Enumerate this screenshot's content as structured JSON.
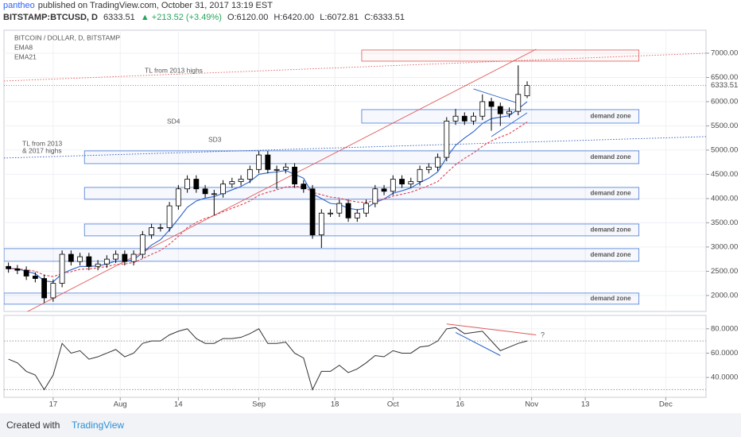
{
  "header": {
    "author": "pantheo",
    "published": "published on TradingView.com, October 31, 2017 13:19 EST",
    "symbol": "BITSTAMP:BTCUSD, D",
    "price": "6333.51",
    "change": "▲ +213.52 (+3.49%)",
    "open": "O:6120.00",
    "high": "H:6420.00",
    "low": "L:6072.81",
    "close": "C:6333.51"
  },
  "footer": {
    "created": "Created with",
    "brand": "TradingView"
  },
  "chart_data": [
    {
      "type": "candlestick",
      "title": "BITCOIN / DOLLAR, D, BITSTAMP",
      "up_color": "#ffffff",
      "down_color": "#000000",
      "wick_color": "#000000",
      "x": [
        "2017-07-07",
        "2017-07-09",
        "2017-07-11",
        "2017-07-13",
        "2017-07-15",
        "2017-07-17",
        "2017-07-19",
        "2017-07-21",
        "2017-07-23",
        "2017-07-25",
        "2017-07-27",
        "2017-07-29",
        "2017-07-31",
        "2017-08-02",
        "2017-08-04",
        "2017-08-06",
        "2017-08-08",
        "2017-08-10",
        "2017-08-12",
        "2017-08-14",
        "2017-08-16",
        "2017-08-18",
        "2017-08-20",
        "2017-08-22",
        "2017-08-24",
        "2017-08-26",
        "2017-08-28",
        "2017-08-30",
        "2017-09-01",
        "2017-09-03",
        "2017-09-05",
        "2017-09-07",
        "2017-09-09",
        "2017-09-11",
        "2017-09-13",
        "2017-09-15",
        "2017-09-17",
        "2017-09-19",
        "2017-09-21",
        "2017-09-23",
        "2017-09-25",
        "2017-09-27",
        "2017-09-29",
        "2017-10-01",
        "2017-10-03",
        "2017-10-05",
        "2017-10-07",
        "2017-10-09",
        "2017-10-11",
        "2017-10-13",
        "2017-10-15",
        "2017-10-17",
        "2017-10-19",
        "2017-10-21",
        "2017-10-23",
        "2017-10-25",
        "2017-10-27",
        "2017-10-29",
        "2017-10-31"
      ],
      "open": [
        2600,
        2550,
        2520,
        2400,
        2350,
        1950,
        2250,
        2850,
        2700,
        2800,
        2600,
        2650,
        2750,
        2850,
        2700,
        2850,
        3250,
        3400,
        3400,
        3850,
        4200,
        4400,
        4200,
        4100,
        4100,
        4300,
        4350,
        4400,
        4600,
        4900,
        4600,
        4600,
        4650,
        4300,
        4200,
        3250,
        3700,
        3700,
        3900,
        3600,
        3700,
        3900,
        4200,
        4150,
        4400,
        4300,
        4350,
        4600,
        4650,
        4850,
        5600,
        5700,
        5600,
        5700,
        6000,
        5900,
        5750,
        5800,
        6120
      ],
      "high": [
        2680,
        2630,
        2600,
        2480,
        2430,
        2330,
        2930,
        2930,
        2880,
        2880,
        2730,
        2830,
        2930,
        2930,
        2930,
        3330,
        3480,
        3480,
        3930,
        4280,
        4480,
        4480,
        4280,
        4180,
        4380,
        4430,
        4480,
        4680,
        4980,
        4980,
        4680,
        4730,
        4730,
        4380,
        4280,
        3780,
        3780,
        3980,
        3980,
        3780,
        3980,
        4280,
        4280,
        4480,
        4480,
        4430,
        4680,
        4730,
        4930,
        5680,
        5850,
        5780,
        5780,
        6150,
        6080,
        5980,
        5880,
        6750,
        6420
      ],
      "low": [
        2470,
        2440,
        2320,
        2270,
        1850,
        1870,
        2170,
        2620,
        2620,
        2520,
        2520,
        2570,
        2670,
        2620,
        2620,
        2770,
        3170,
        3320,
        3320,
        3770,
        4120,
        4120,
        4020,
        3650,
        4020,
        4220,
        4270,
        4320,
        4520,
        4520,
        4200,
        4520,
        4220,
        4120,
        3170,
        2980,
        3620,
        3620,
        3520,
        3520,
        3620,
        3820,
        4070,
        4070,
        4220,
        4220,
        4270,
        4520,
        4570,
        4770,
        5520,
        5520,
        5520,
        5620,
        5400,
        5500,
        5670,
        5720,
        6072.81
      ],
      "close": [
        2550,
        2520,
        2400,
        2350,
        1950,
        2250,
        2850,
        2700,
        2800,
        2600,
        2650,
        2750,
        2850,
        2700,
        2850,
        3250,
        3400,
        3400,
        3850,
        4200,
        4400,
        4200,
        4100,
        4100,
        4300,
        4350,
        4400,
        4600,
        4900,
        4600,
        4600,
        4650,
        4300,
        4200,
        3250,
        3700,
        3700,
        3900,
        3600,
        3700,
        3900,
        4200,
        4150,
        4400,
        4300,
        4350,
        4600,
        4650,
        4850,
        5600,
        5700,
        5600,
        5700,
        6000,
        5900,
        5750,
        5800,
        6150,
        6333.51
      ],
      "series": [
        {
          "name": "EMA8",
          "color": "#2962c9",
          "values": [
            2560,
            2550,
            2500,
            2450,
            2300,
            2280,
            2450,
            2530,
            2600,
            2600,
            2610,
            2650,
            2710,
            2700,
            2740,
            2880,
            3040,
            3150,
            3350,
            3580,
            3820,
            3950,
            4010,
            4040,
            4110,
            4180,
            4250,
            4350,
            4500,
            4530,
            4550,
            4580,
            4500,
            4420,
            4100,
            4000,
            3900,
            3880,
            3800,
            3770,
            3800,
            3920,
            3990,
            4110,
            4160,
            4220,
            4330,
            4420,
            4550,
            4850,
            5100,
            5250,
            5380,
            5550,
            5650,
            5680,
            5710,
            5850,
            6000
          ]
        },
        {
          "name": "EMA21",
          "color": "#e04050",
          "values": [
            2550,
            2550,
            2530,
            2500,
            2420,
            2390,
            2450,
            2490,
            2540,
            2550,
            2570,
            2600,
            2640,
            2650,
            2680,
            2760,
            2850,
            2930,
            3060,
            3220,
            3400,
            3510,
            3590,
            3650,
            3730,
            3800,
            3870,
            3950,
            4070,
            4130,
            4180,
            4240,
            4250,
            4250,
            4130,
            4080,
            4030,
            4010,
            3960,
            3930,
            3920,
            3960,
            3990,
            4050,
            4090,
            4130,
            4200,
            4270,
            4350,
            4530,
            4700,
            4830,
            4940,
            5080,
            5190,
            5270,
            5340,
            5460,
            5580
          ]
        }
      ],
      "xlim": [
        "2017-07-06",
        "2017-12-10"
      ],
      "xticks": [
        {
          "value": "2017-07-17",
          "label": "17"
        },
        {
          "value": "2017-08-01",
          "label": "Aug"
        },
        {
          "value": "2017-08-14",
          "label": "14"
        },
        {
          "value": "2017-09-01",
          "label": "Sep"
        },
        {
          "value": "2017-09-18",
          "label": "18"
        },
        {
          "value": "2017-10-01",
          "label": "Oct"
        },
        {
          "value": "2017-10-16",
          "label": "16"
        },
        {
          "value": "2017-11-01",
          "label": "Nov"
        },
        {
          "value": "2017-11-13",
          "label": "13"
        },
        {
          "value": "2017-12-01",
          "label": "Dec"
        }
      ],
      "ylim": [
        1670,
        7475
      ],
      "yticks": [
        {
          "value": 2000,
          "label": "2000.00"
        },
        {
          "value": 2500,
          "label": "2500.00"
        },
        {
          "value": 3000,
          "label": "3000.00"
        },
        {
          "value": 3500,
          "label": "3500.00"
        },
        {
          "value": 4000,
          "label": "4000.00"
        },
        {
          "value": 4500,
          "label": "4500.00"
        },
        {
          "value": 5000,
          "label": "5000.00"
        },
        {
          "value": 5500,
          "label": "5500.00"
        },
        {
          "value": 6000,
          "label": "6000.00"
        },
        {
          "value": 6500,
          "label": "6500.00"
        },
        {
          "value": 7000,
          "label": "7000.00"
        }
      ],
      "grid": true,
      "zone_color": "#4a7bd4",
      "zones": [
        {
          "label": "demand zone",
          "start": "2017-09-24",
          "end": "2017-11-25",
          "low": 5557,
          "high": 5836
        },
        {
          "label": "demand zone",
          "start": "2017-07-24",
          "end": "2017-11-25",
          "low": 4721,
          "high": 4984
        },
        {
          "label": "demand zone",
          "start": "2017-07-24",
          "end": "2017-11-25",
          "low": 3984,
          "high": 4230
        },
        {
          "label": "demand zone",
          "start": "2017-07-24",
          "end": "2017-11-25",
          "low": 3230,
          "high": 3475
        },
        {
          "label": "demand zone",
          "start": "2017-07-06",
          "end": "2017-11-25",
          "low": 2705,
          "high": 2967
        },
        {
          "label": "demand zone",
          "start": "2017-07-06",
          "end": "2017-11-25",
          "low": 1820,
          "high": 2049
        }
      ],
      "boxes": [
        {
          "start": "2017-09-24",
          "end": "2017-11-25",
          "low": 6836,
          "high": 7066,
          "color": "#e05a5a"
        }
      ],
      "trendlines": [
        {
          "start": [
            "2017-07-11",
            1656
          ],
          "end": [
            "2017-11-02",
            7082
          ],
          "color": "#e05a5a",
          "dash": false
        },
        {
          "start": [
            "2017-07-06",
            6426
          ],
          "end": [
            "2017-12-10",
            7000
          ],
          "color": "#e05a5a",
          "dash": true
        },
        {
          "start": [
            "2017-07-06",
            4836
          ],
          "end": [
            "2017-12-10",
            5279
          ],
          "color": "#2a55b8",
          "dash": true
        },
        {
          "start": [
            "2017-10-19",
            6262
          ],
          "end": [
            "2017-10-29",
            5967
          ],
          "color": "#2962c9",
          "dash": false
        },
        {
          "start": [
            "2017-10-23",
            5279
          ],
          "end": [
            "2017-10-31",
            5770
          ],
          "color": "#2962c9",
          "dash": false
        }
      ],
      "annotations": [
        "TL from 2013 highs",
        "TL from 2013",
        "& 2017 highs",
        "SD4",
        "SD3"
      ]
    },
    {
      "type": "line",
      "color": "#333333",
      "values": [
        55,
        52,
        45,
        42,
        30,
        42,
        68,
        60,
        62,
        55,
        57,
        60,
        63,
        57,
        60,
        68,
        70,
        70,
        75,
        78,
        80,
        72,
        68,
        68,
        72,
        72,
        73,
        76,
        80,
        68,
        68,
        69,
        60,
        56,
        30,
        45,
        45,
        50,
        44,
        47,
        52,
        58,
        57,
        62,
        60,
        60,
        65,
        66,
        70,
        80,
        81,
        76,
        77,
        78,
        70,
        62,
        65,
        68,
        70
      ],
      "ylim": [
        23.7,
        91
      ],
      "yticks": [
        {
          "value": 40,
          "label": "40.0000"
        },
        {
          "value": 60,
          "label": "60.0000"
        },
        {
          "value": 80,
          "label": "80.0000"
        }
      ],
      "levels": [
        30,
        70
      ],
      "trendlines": [
        {
          "start": [
            "2017-10-13",
            84
          ],
          "end": [
            "2017-11-02",
            75
          ],
          "color": "#e05a5a"
        },
        {
          "start": [
            "2017-10-15",
            77
          ],
          "end": [
            "2017-10-25",
            58
          ],
          "color": "#2962c9"
        }
      ],
      "annotations": [
        "?"
      ]
    }
  ]
}
